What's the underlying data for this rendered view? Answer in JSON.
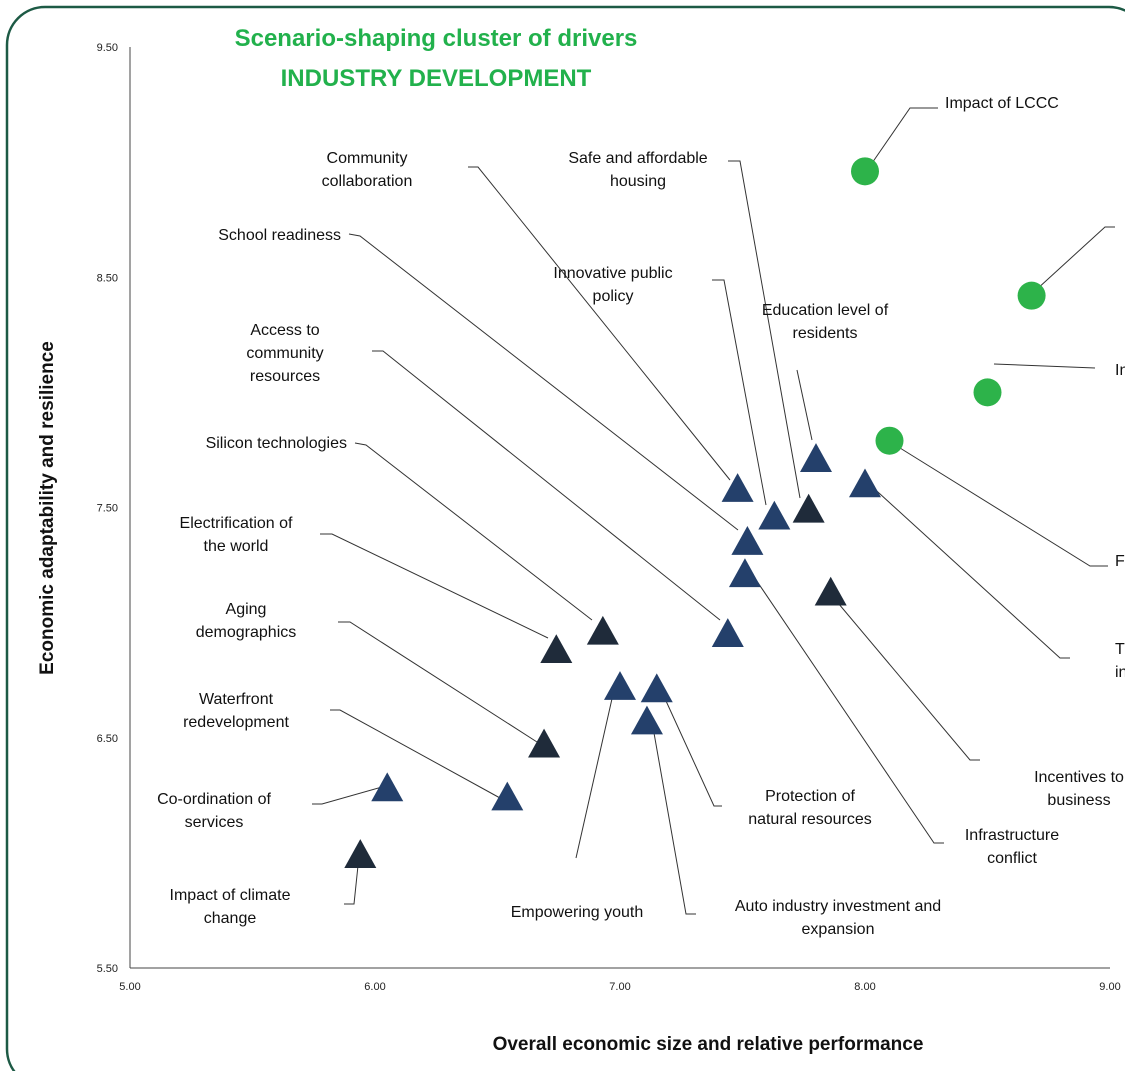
{
  "chart_data": {
    "type": "scatter",
    "title_lines": [
      "Scenario-shaping cluster of drivers",
      "INDUSTRY DEVELOPMENT"
    ],
    "xlabel": "Overall economic size and relative performance",
    "ylabel": "Economic adaptability and resilience",
    "xlim": [
      5.0,
      9.0
    ],
    "ylim": [
      5.5,
      9.5
    ],
    "x_ticks": [
      "5.00",
      "6.00",
      "7.00",
      "8.00",
      "9.00"
    ],
    "y_ticks": [
      "5.50",
      "6.50",
      "7.50",
      "8.50",
      "9.50"
    ],
    "grid": false,
    "colors": {
      "title": "#22b14c",
      "green_marker": "#2db34a",
      "blue_marker": "#24406b",
      "dark_marker": "#1f2b3a",
      "frame": "#1d5a45"
    },
    "points": [
      {
        "label": "Impact of LCCC",
        "x": 8.0,
        "y": 8.96,
        "shape": "circle",
        "color": "green"
      },
      {
        "label": "",
        "x": 8.68,
        "y": 8.42,
        "shape": "circle",
        "color": "green"
      },
      {
        "label": "In",
        "x": 8.5,
        "y": 8.0,
        "shape": "circle",
        "color": "green"
      },
      {
        "label": "F",
        "x": 8.1,
        "y": 7.79,
        "shape": "circle",
        "color": "green"
      },
      {
        "label": "Community collaboration",
        "x": 7.48,
        "y": 7.58,
        "shape": "triangle",
        "color": "blue"
      },
      {
        "label": "Safe and affordable housing",
        "x": 7.77,
        "y": 7.49,
        "shape": "triangle",
        "color": "dark"
      },
      {
        "label": "School readiness",
        "x": 7.52,
        "y": 7.35,
        "shape": "triangle",
        "color": "blue"
      },
      {
        "label": "Innovative public policy",
        "x": 7.63,
        "y": 7.46,
        "shape": "triangle",
        "color": "blue"
      },
      {
        "label": "Education level of residents",
        "x": 7.8,
        "y": 7.71,
        "shape": "triangle",
        "color": "blue"
      },
      {
        "label": "Access to community resources",
        "x": 7.44,
        "y": 6.95,
        "shape": "triangle",
        "color": "blue"
      },
      {
        "label": "Silicon technologies",
        "x": 6.93,
        "y": 6.96,
        "shape": "triangle",
        "color": "dark"
      },
      {
        "label": "Electrification of the world",
        "x": 6.74,
        "y": 6.88,
        "shape": "triangle",
        "color": "dark"
      },
      {
        "label": "Aging demographics",
        "x": 6.69,
        "y": 6.47,
        "shape": "triangle",
        "color": "dark"
      },
      {
        "label": "Waterfront redevelopment",
        "x": 6.54,
        "y": 6.24,
        "shape": "triangle",
        "color": "blue"
      },
      {
        "label": "Co-ordination of services",
        "x": 6.05,
        "y": 6.28,
        "shape": "triangle",
        "color": "blue"
      },
      {
        "label": "Impact of climate change",
        "x": 5.94,
        "y": 5.99,
        "shape": "triangle",
        "color": "dark"
      },
      {
        "label": "Empowering youth",
        "x": 7.0,
        "y": 6.72,
        "shape": "triangle",
        "color": "blue"
      },
      {
        "label": "Protection of natural resources",
        "x": 7.15,
        "y": 6.71,
        "shape": "triangle",
        "color": "blue"
      },
      {
        "label": "Auto industry investment and expansion",
        "x": 7.11,
        "y": 6.57,
        "shape": "triangle",
        "color": "blue"
      },
      {
        "label": "Infrastructure conflict",
        "x": 7.51,
        "y": 7.21,
        "shape": "triangle",
        "color": "blue"
      },
      {
        "label": "Incentives to business",
        "x": 7.86,
        "y": 7.13,
        "shape": "triangle",
        "color": "dark"
      },
      {
        "label": "Tr in",
        "x": 8.0,
        "y": 7.6,
        "shape": "triangle",
        "color": "blue"
      }
    ]
  }
}
